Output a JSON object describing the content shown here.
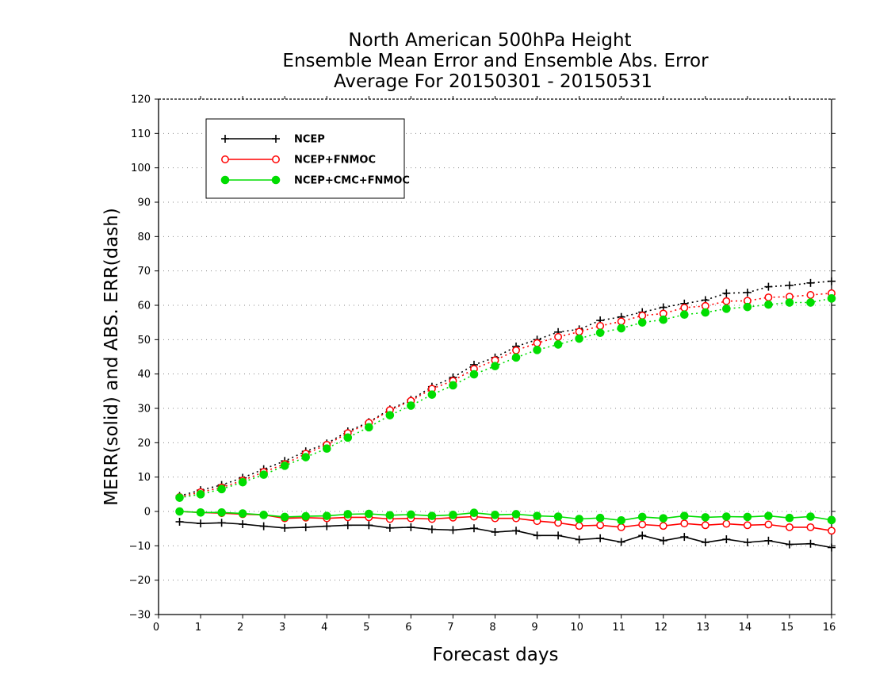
{
  "chart_data": {
    "type": "line",
    "title": [
      "North American 500hPa Height",
      "Ensemble Mean Error and Ensemble Abs. Error",
      "Average For 20150301 - 20150531"
    ],
    "xlabel": "Forecast days",
    "ylabel": "MERR(solid) and ABS. ERR(dash)",
    "xlim": [
      0,
      16
    ],
    "ylim": [
      -30,
      120
    ],
    "xticks": [
      0,
      1,
      2,
      3,
      4,
      5,
      6,
      7,
      8,
      9,
      10,
      11,
      12,
      13,
      14,
      15,
      16
    ],
    "yticks": [
      -30,
      -20,
      -10,
      0,
      10,
      20,
      30,
      40,
      50,
      60,
      70,
      80,
      90,
      100,
      110,
      120
    ],
    "grid": "horizontal dotted",
    "legend_position": "top-left",
    "x": [
      0.5,
      1,
      1.5,
      2,
      2.5,
      3,
      3.5,
      4,
      4.5,
      5,
      5.5,
      6,
      6.5,
      7,
      7.5,
      8,
      8.5,
      9,
      9.5,
      10,
      10.5,
      11,
      11.5,
      12,
      12.5,
      13,
      13.5,
      14,
      14.5,
      15,
      15.5,
      16
    ],
    "series": [
      {
        "name": "NCEP",
        "color": "#000000",
        "marker": "plus",
        "merr": [
          -3,
          -3.5,
          -3.3,
          -3.7,
          -4.3,
          -4.8,
          -4.6,
          -4.3,
          -4,
          -4,
          -4.8,
          -4.6,
          -5.2,
          -5.4,
          -4.9,
          -6,
          -5.6,
          -7,
          -7,
          -8.2,
          -7.8,
          -8.9,
          -7,
          -8.5,
          -7.4,
          -9,
          -8.1,
          -9,
          -8.5,
          -9.6,
          -9.4,
          -10.5
        ],
        "abs_err": [
          4.5,
          6.2,
          7.7,
          9.8,
          12.3,
          14.7,
          17.5,
          19.8,
          23.3,
          26,
          29.7,
          32.5,
          36.3,
          39,
          42.7,
          44.8,
          48,
          50,
          52.2,
          53,
          55.6,
          56.6,
          58,
          59.4,
          60.5,
          61.5,
          63.5,
          63.7,
          65.4,
          65.8,
          66.5,
          67
        ]
      },
      {
        "name": "NCEP+FNMOC",
        "color": "#ff0000",
        "marker": "open-circle",
        "merr": [
          0,
          -0.3,
          -0.5,
          -0.8,
          -1,
          -2,
          -1.8,
          -2,
          -1.7,
          -1.7,
          -2.2,
          -2,
          -2.2,
          -1.8,
          -1.5,
          -2,
          -2,
          -2.8,
          -3.3,
          -4.2,
          -4,
          -4.6,
          -3.8,
          -4.2,
          -3.5,
          -4,
          -3.6,
          -4,
          -3.8,
          -4.6,
          -4.6,
          -5.6
        ],
        "abs_err": [
          4.2,
          5.6,
          7,
          9,
          11.5,
          13.8,
          16.8,
          19.4,
          22.8,
          25.8,
          29.5,
          32.2,
          35.7,
          38,
          41.5,
          44,
          46.9,
          49,
          50.8,
          52.3,
          54,
          55.3,
          57,
          57.6,
          59.3,
          59.8,
          61.2,
          61.3,
          62.3,
          62.5,
          63,
          63.5
        ]
      },
      {
        "name": "NCEP+CMC+FNMOC",
        "color": "#00dd00",
        "marker": "filled-circle",
        "merr": [
          0,
          -0.3,
          -0.3,
          -0.6,
          -1,
          -1.6,
          -1.4,
          -1.3,
          -0.8,
          -0.7,
          -1.1,
          -0.9,
          -1.3,
          -1,
          -0.4,
          -1,
          -0.8,
          -1.3,
          -1.5,
          -2.2,
          -1.9,
          -2.6,
          -1.6,
          -2,
          -1.3,
          -1.7,
          -1.5,
          -1.6,
          -1.3,
          -1.9,
          -1.5,
          -2.5
        ],
        "abs_err": [
          4,
          5,
          6.5,
          8.5,
          10.7,
          13.3,
          15.8,
          18.3,
          21.5,
          24.5,
          28,
          30.8,
          34,
          36.7,
          39.9,
          42.3,
          44.8,
          47,
          48.6,
          50.3,
          52,
          53.3,
          55,
          55.8,
          57.3,
          57.9,
          59,
          59.5,
          60.2,
          60.8,
          60.8,
          62
        ]
      }
    ]
  }
}
